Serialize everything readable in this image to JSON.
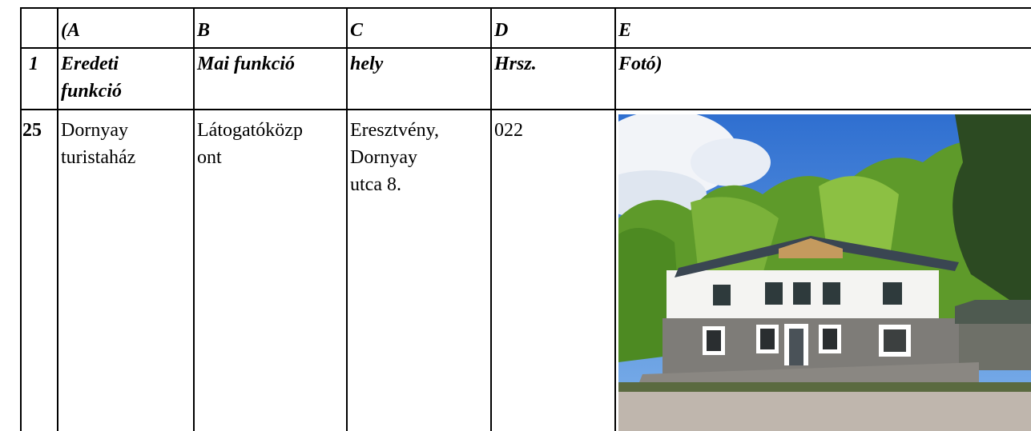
{
  "table": {
    "header": [
      "(A",
      "B",
      "C",
      "D",
      "E"
    ],
    "rows": [
      {
        "label": "1",
        "cells": [
          [
            "Eredeti",
            "funkció"
          ],
          [
            "Mai funkció"
          ],
          [
            "hely"
          ],
          [
            "Hrsz."
          ],
          [
            "Fotó)"
          ]
        ]
      },
      {
        "label": "25",
        "cells": [
          [
            "Dornyay",
            "turistaház"
          ],
          [
            "Látogatóközp",
            "ont"
          ],
          [
            "Eresztvény,",
            "Dornyay",
            "utca 8."
          ],
          [
            "022"
          ]
        ]
      }
    ]
  }
}
